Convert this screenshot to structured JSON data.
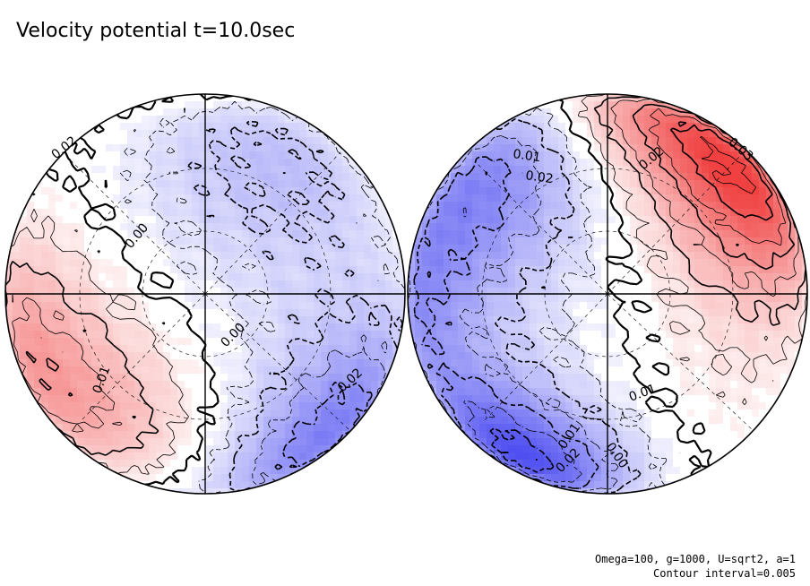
{
  "title": "Velocity potential t=10.0sec",
  "footer": {
    "params": "Omega=100, g=1000, U=sqrt2, a=1",
    "interval": "Contour interval=0.005"
  },
  "colors": {
    "positive": "#f04040",
    "negative": "#4040f0",
    "contour": "#000000",
    "background": "#ffffff"
  },
  "chart_data": {
    "type": "heatmap",
    "title": "Velocity potential t=10.0sec",
    "projection": "orthographic hemispheres",
    "contour_interval": 0.005,
    "value_range": [
      -0.035,
      0.035
    ],
    "panels": [
      {
        "name": "left-hemisphere",
        "contour_labels": [
          "0.02",
          "0.00",
          "0.00",
          "0.01",
          "0.02"
        ],
        "extrema": [
          {
            "value": 0.018,
            "lon": -65,
            "lat": -20,
            "sigma": 26
          },
          {
            "value": 0.008,
            "lon": -20,
            "lat": -40,
            "sigma": 22
          },
          {
            "value": 0.004,
            "lon": 0,
            "lat": 86,
            "sigma": 14
          },
          {
            "value": -0.008,
            "lon": 15,
            "lat": 35,
            "sigma": 30
          },
          {
            "value": -0.005,
            "lon": 40,
            "lat": 45,
            "sigma": 22
          },
          {
            "value": -0.024,
            "lon": 60,
            "lat": -45,
            "sigma": 28
          }
        ]
      },
      {
        "name": "right-hemisphere",
        "contour_labels": [
          "0.01",
          "0.02",
          "0.02",
          "0.03",
          "0.01",
          "0.01",
          "0.00",
          "0.02"
        ],
        "extrema": [
          {
            "value": -0.022,
            "lon": -45,
            "lat": 35,
            "sigma": 28
          },
          {
            "value": -0.032,
            "lon": -45,
            "lat": -55,
            "sigma": 22
          },
          {
            "value": -0.014,
            "lon": -75,
            "lat": -5,
            "sigma": 22
          },
          {
            "value": 0.034,
            "lon": 55,
            "lat": 35,
            "sigma": 24
          },
          {
            "value": 0.015,
            "lon": 15,
            "lat": 65,
            "sigma": 20
          },
          {
            "value": 0.003,
            "lon": 40,
            "lat": -30,
            "sigma": 30
          }
        ]
      }
    ]
  }
}
